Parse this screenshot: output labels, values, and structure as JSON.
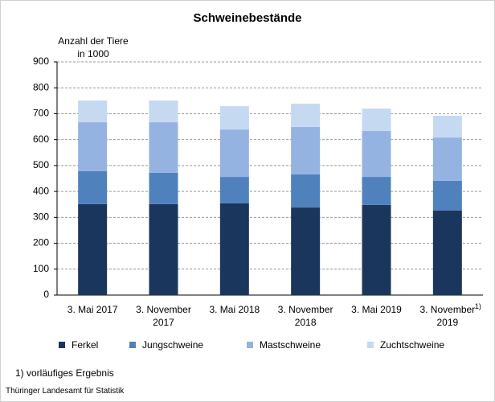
{
  "chart_data": {
    "type": "stacked_bar",
    "title": "Schweinebestände",
    "y_axis_label": "Anzahl der Tiere in 1000",
    "categories": [
      "3. Mai 2017",
      "3. November 2017",
      "3. Mai 2018",
      "3. November 2018",
      "3. Mai 2019",
      "3. November 2019"
    ],
    "category_footnote_marker": "1)",
    "series": [
      {
        "name": "Ferkel",
        "color": "#1b365d",
        "values": [
          351,
          351,
          354,
          338,
          348,
          326
        ]
      },
      {
        "name": "Jungschweine",
        "color": "#4f81bd",
        "values": [
          127,
          121,
          102,
          128,
          108,
          115
        ]
      },
      {
        "name": "Mastschweine",
        "color": "#95b3e0",
        "values": [
          189,
          195,
          183,
          183,
          177,
          167
        ]
      },
      {
        "name": "Zuchtschweine",
        "color": "#c5d9f1",
        "values": [
          84,
          84,
          90,
          90,
          87,
          84
        ]
      }
    ],
    "ylim": [
      0,
      900
    ],
    "yticks": [
      0,
      100,
      200,
      300,
      400,
      500,
      600,
      700,
      800,
      900
    ],
    "grid": true,
    "footnote": "1) vorläufiges Ergebnis",
    "source": "Thüringer Landesamt für Statistik"
  }
}
